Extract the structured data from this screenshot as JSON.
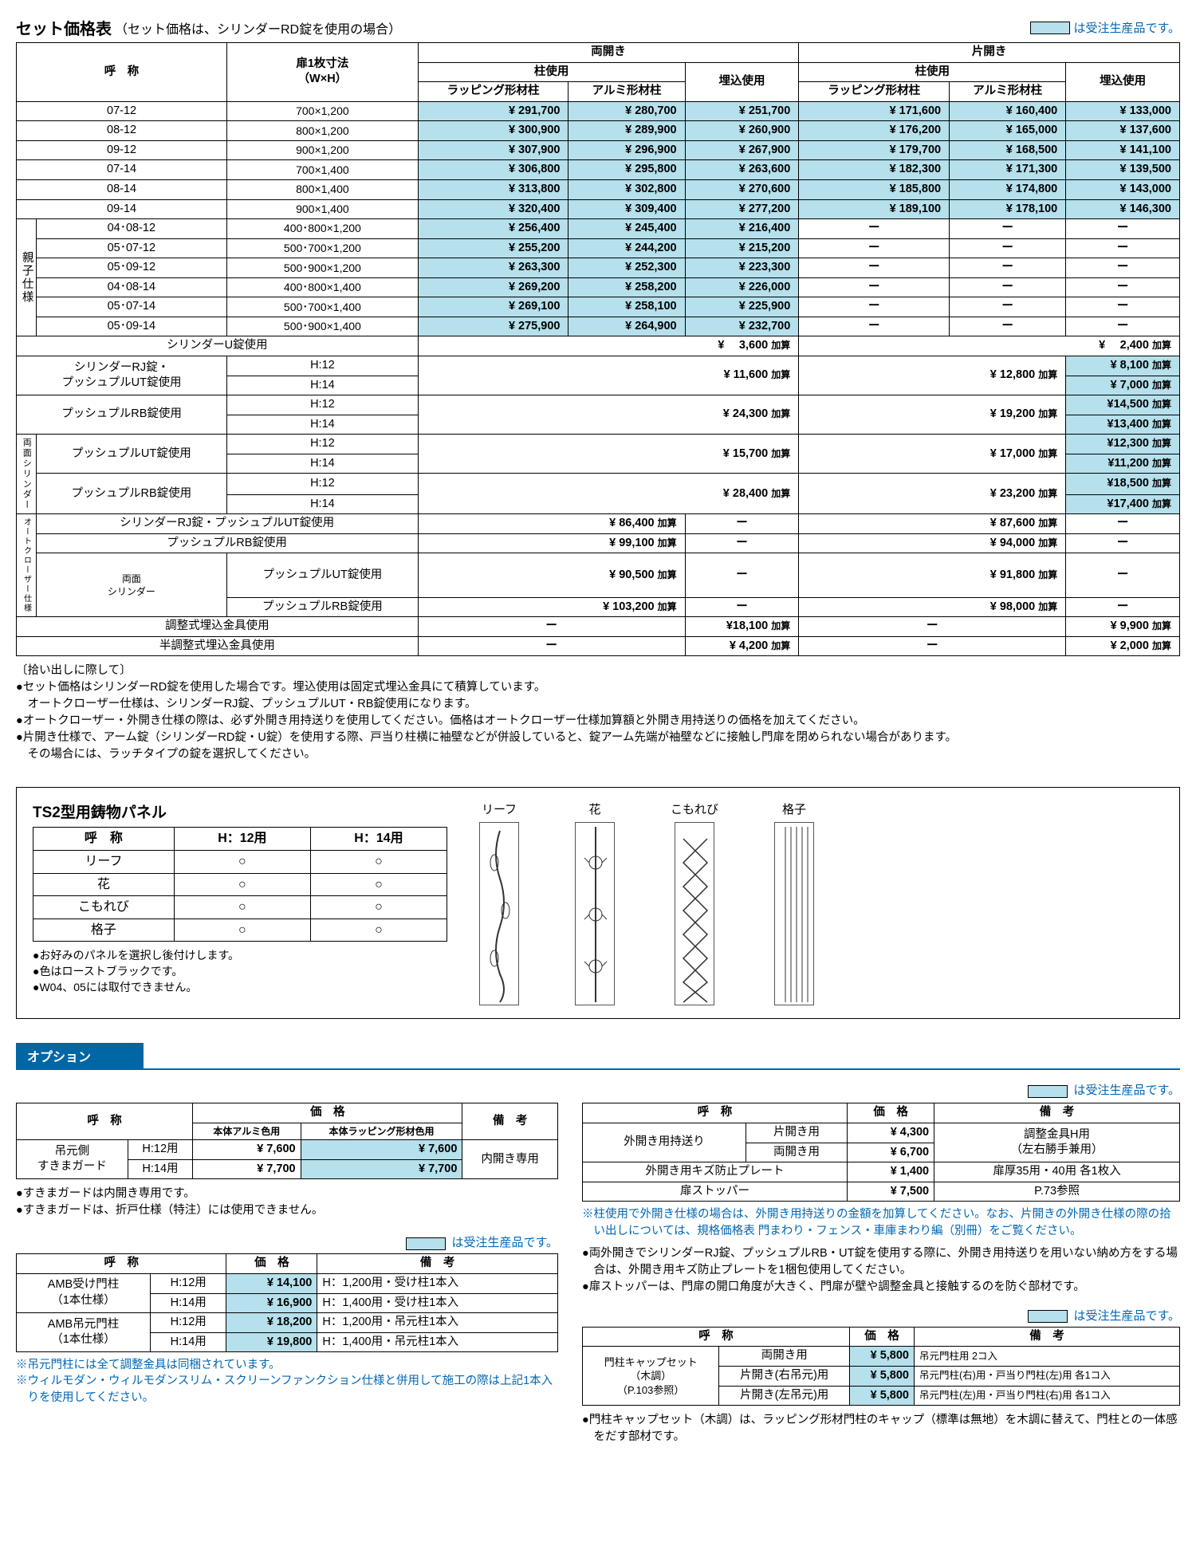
{
  "title": "セット価格表",
  "subtitle": "（セット価格は、シリンダーRD錠を使用の場合）",
  "legend": "は受注生産品です。",
  "header": {
    "name": "呼　称",
    "dim": "扉1枚寸法\n（W×H）",
    "both": "両開き",
    "single": "片開き",
    "pillar": "柱使用",
    "embed": "埋込使用",
    "lap": "ラッピング形材柱",
    "alum": "アルミ形材柱"
  },
  "main_rows": [
    {
      "n": "07-12",
      "d": "700×1,200",
      "p": [
        "¥ 291,700",
        "¥ 280,700",
        "¥ 251,700",
        "¥ 171,600",
        "¥ 160,400",
        "¥ 133,000"
      ]
    },
    {
      "n": "08-12",
      "d": "800×1,200",
      "p": [
        "¥ 300,900",
        "¥ 289,900",
        "¥ 260,900",
        "¥ 176,200",
        "¥ 165,000",
        "¥ 137,600"
      ]
    },
    {
      "n": "09-12",
      "d": "900×1,200",
      "p": [
        "¥ 307,900",
        "¥ 296,900",
        "¥ 267,900",
        "¥ 179,700",
        "¥ 168,500",
        "¥ 141,100"
      ]
    },
    {
      "n": "07-14",
      "d": "700×1,400",
      "p": [
        "¥ 306,800",
        "¥ 295,800",
        "¥ 263,600",
        "¥ 182,300",
        "¥ 171,300",
        "¥ 139,500"
      ]
    },
    {
      "n": "08-14",
      "d": "800×1,400",
      "p": [
        "¥ 313,800",
        "¥ 302,800",
        "¥ 270,600",
        "¥ 185,800",
        "¥ 174,800",
        "¥ 143,000"
      ]
    },
    {
      "n": "09-14",
      "d": "900×1,400",
      "p": [
        "¥ 320,400",
        "¥ 309,400",
        "¥ 277,200",
        "¥ 189,100",
        "¥ 178,100",
        "¥ 146,300"
      ]
    }
  ],
  "oyako_label": "親子仕様",
  "oyako_rows": [
    {
      "n": "04･08-12",
      "d": "400･800×1,200",
      "p": [
        "¥ 256,400",
        "¥ 245,400",
        "¥ 216,400"
      ]
    },
    {
      "n": "05･07-12",
      "d": "500･700×1,200",
      "p": [
        "¥ 255,200",
        "¥ 244,200",
        "¥ 215,200"
      ]
    },
    {
      "n": "05･09-12",
      "d": "500･900×1,200",
      "p": [
        "¥ 263,300",
        "¥ 252,300",
        "¥ 223,300"
      ]
    },
    {
      "n": "04･08-14",
      "d": "400･800×1,400",
      "p": [
        "¥ 269,200",
        "¥ 258,200",
        "¥ 226,000"
      ]
    },
    {
      "n": "05･07-14",
      "d": "500･700×1,400",
      "p": [
        "¥ 269,100",
        "¥ 258,100",
        "¥ 225,900"
      ]
    },
    {
      "n": "05･09-14",
      "d": "500･900×1,400",
      "p": [
        "¥ 275,900",
        "¥ 264,900",
        "¥ 232,700"
      ]
    }
  ],
  "ulock": {
    "label": "シリンダーU錠使用",
    "v1": "¥　 3,600 加算",
    "v2": "¥　 2,400 加算"
  },
  "locks": [
    {
      "label": "シリンダーRJ錠・\nプッシュプルUT錠使用",
      "h": [
        "H:12",
        "H:14"
      ],
      "v1": "¥ 11,600 加算",
      "v2": "¥ 12,800 加算",
      "v3": [
        "¥  8,100 加算",
        "¥  7,000 加算"
      ]
    },
    {
      "label": "プッシュプルRB錠使用",
      "h": [
        "H:12",
        "H:14"
      ],
      "v1": "¥ 24,300 加算",
      "v2": "¥ 19,200 加算",
      "v3": [
        "¥14,500 加算",
        "¥13,400 加算"
      ]
    }
  ],
  "both_cyl_label": "両面シリンダー",
  "both_cyl": [
    {
      "label": "プッシュプルUT錠使用",
      "h": [
        "H:12",
        "H:14"
      ],
      "v1": "¥ 15,700 加算",
      "v2": "¥ 17,000 加算",
      "v3": [
        "¥12,300 加算",
        "¥11,200 加算"
      ]
    },
    {
      "label": "プッシュプルRB錠使用",
      "h": [
        "H:12",
        "H:14"
      ],
      "v1": "¥ 28,400 加算",
      "v2": "¥ 23,200 加算",
      "v3": [
        "¥18,500 加算",
        "¥17,400 加算"
      ]
    }
  ],
  "auto_label": "オートクローザー仕様",
  "auto_rows": [
    {
      "label": "シリンダーRJ錠・プッシュプルUT錠使用",
      "v1": "¥  86,400 加算",
      "v2": "¥ 87,600 加算"
    },
    {
      "label": "プッシュプルRB錠使用",
      "v1": "¥  99,100 加算",
      "v2": "¥ 94,000 加算"
    }
  ],
  "auto_both_label": "両面\nシリンダー",
  "auto_both": [
    {
      "label": "プッシュプルUT錠使用",
      "v1": "¥  90,500 加算",
      "v2": "¥ 91,800 加算"
    },
    {
      "label": "プッシュプルRB錠使用",
      "v1": "¥ 103,200 加算",
      "v2": "¥ 98,000 加算"
    }
  ],
  "adj_rows": [
    {
      "label": "調整式埋込金具使用",
      "v1": "ー",
      "v2": "¥18,100 加算",
      "v3": "ー",
      "v4": "¥  9,900 加算"
    },
    {
      "label": "半調整式埋込金具使用",
      "v1": "ー",
      "v2": "¥  4,200 加算",
      "v3": "ー",
      "v4": "¥  2,000 加算"
    }
  ],
  "main_notes": [
    "〔拾い出しに際して〕",
    "●セット価格はシリンダーRD錠を使用した場合です。埋込使用は固定式埋込金具にて積算しています。",
    "　オートクローザー仕様は、シリンダーRJ錠、プッシュプルUT・RB錠使用になります。",
    "●オートクローザー・外開き仕様の際は、必ず外開き用持送りを使用してください。価格はオートクローザー仕様加算額と外開き用持送りの価格を加えてください。",
    "●片開き仕様で、アーム錠（シリンダーRD錠・U錠）を使用する際、戸当り柱横に袖壁などが併設していると、錠アーム先端が袖壁などに接触し門扉を閉められない場合があります。",
    "　その場合には、ラッチタイプの錠を選択してください。"
  ],
  "panel": {
    "title": "TS2型用鋳物パネル",
    "cols": [
      "呼　称",
      "H：12用",
      "H：14用"
    ],
    "rows": [
      "リーフ",
      "花",
      "こもれび",
      "格子"
    ],
    "notes": [
      "●お好みのパネルを選択し後付けします。",
      "●色はローストブラックです。",
      "●W04、05には取付できません。"
    ]
  },
  "option_label": "オプション",
  "opt1": {
    "cols": [
      "呼　称",
      "価　格",
      "備　考"
    ],
    "sub": [
      "本体アルミ色用",
      "本体ラッピング形材色用"
    ],
    "label": "吊元側\nすきまガード",
    "h": [
      "H:12用",
      "H:14用"
    ],
    "p": [
      [
        "¥ 7,600",
        "¥ 7,600"
      ],
      [
        "¥ 7,700",
        "¥ 7,700"
      ]
    ],
    "note": "内開き専用",
    "notes": [
      "●すきまガードは内開き専用です。",
      "●すきまガードは、折戸仕様（特注）には使用できません。"
    ]
  },
  "opt2": {
    "rows": [
      {
        "l": "外開き用持送り",
        "s": "片開き用",
        "p": "¥ 4,300",
        "n": "調整金具H用"
      },
      {
        "l": "",
        "s": "両開き用",
        "p": "¥ 6,700",
        "n": "（左右勝手兼用）"
      },
      {
        "l": "外開き用キズ防止プレート",
        "s": "",
        "p": "¥ 1,400",
        "n": "扉厚35用・40用 各1枚入"
      },
      {
        "l": "扉ストッパー",
        "s": "",
        "p": "¥ 7,500",
        "n": "P.73参照"
      }
    ],
    "notes": [
      "※柱使用で外開き仕様の場合は、外開き用持送りの金額を加算してください。なお、片開きの外開き仕様の際の拾い出しについては、規格価格表  門まわり・フェンス・車庫まわり編（別冊）をご覧ください。",
      "●両外開きでシリンダーRJ錠、プッシュプルRB・UT錠を使用する際に、外開き用持送りを用いない納め方をする場合は、外開き用キズ防止プレートを1梱包使用してください。",
      "●扉ストッパーは、門扉の開口角度が大きく、門扉が壁や調整金具と接触するのを防ぐ部材です。"
    ]
  },
  "opt3": {
    "rows": [
      {
        "l": "AMB受け門柱\n（1本仕様）",
        "h": [
          "H:12用",
          "H:14用"
        ],
        "p": [
          "¥ 14,100",
          "¥ 16,900"
        ],
        "n": [
          "H：1,200用・受け柱1本入",
          "H：1,400用・受け柱1本入"
        ]
      },
      {
        "l": "AMB吊元門柱\n（1本仕様）",
        "h": [
          "H:12用",
          "H:14用"
        ],
        "p": [
          "¥ 18,200",
          "¥ 19,800"
        ],
        "n": [
          "H：1,200用・吊元柱1本入",
          "H：1,400用・吊元柱1本入"
        ]
      }
    ],
    "notes": [
      "※吊元門柱には全て調整金具は同梱されています。",
      "※ウィルモダン・ウィルモダンスリム・スクリーンファンクション仕様と併用して施工の際は上記1本入りを使用してください。"
    ]
  },
  "opt4": {
    "label": "門柱キャップセット\n（木調）\n（P.103参照）",
    "rows": [
      {
        "s": "両開き用",
        "p": "¥ 5,800",
        "n": "吊元門柱用  2コ入"
      },
      {
        "s": "片開き(右吊元)用",
        "p": "¥ 5,800",
        "n": "吊元門柱(右)用・戸当り門柱(左)用 各1コ入"
      },
      {
        "s": "片開き(左吊元)用",
        "p": "¥ 5,800",
        "n": "吊元門柱(左)用・戸当り門柱(右)用 各1コ入"
      }
    ],
    "note": "●門柱キャップセット（木調）は、ラッピング形材門柱のキャップ（標準は無地）を木調に替えて、門柱との一体感をだす部材です。"
  }
}
